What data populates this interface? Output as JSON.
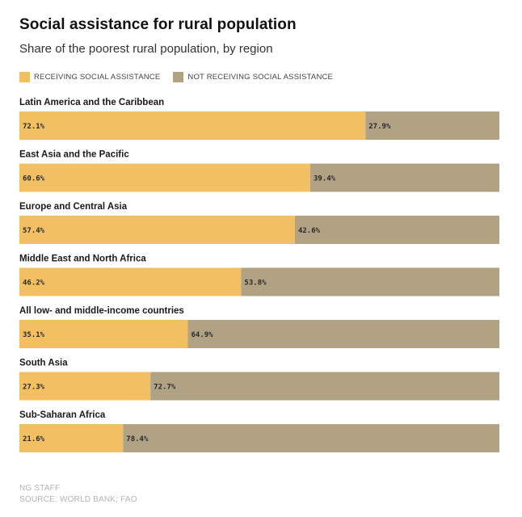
{
  "chart_data": {
    "type": "bar",
    "orientation": "horizontal",
    "stacked": true,
    "title": "Social assistance for rural population",
    "subtitle": "Share of the poorest rural population, by region",
    "xlim": [
      0,
      100
    ],
    "grid": false,
    "legend_position": "top-left",
    "categories": [
      "Latin America and the Caribbean",
      "East Asia and the Pacific",
      "Europe and Central Asia",
      "Middle East and North Africa",
      "All low- and middle-income countries",
      "South Asia",
      "Sub-Saharan Africa"
    ],
    "series": [
      {
        "name": "RECEIVING SOCIAL ASSISTANCE",
        "color": "#f2c063",
        "values": [
          72.1,
          60.6,
          57.4,
          46.2,
          35.1,
          27.3,
          21.6
        ],
        "labels": [
          "72.1%",
          "60.6%",
          "57.4%",
          "46.2%",
          "35.1%",
          "27.3%",
          "21.6%"
        ]
      },
      {
        "name": "NOT RECEIVING SOCIAL ASSISTANCE",
        "color": "#b0a283",
        "values": [
          27.9,
          39.4,
          42.6,
          53.8,
          64.9,
          72.7,
          78.4
        ],
        "labels": [
          "27.9%",
          "39.4%",
          "42.6%",
          "53.8%",
          "64.9%",
          "72.7%",
          "78.4%"
        ]
      }
    ]
  },
  "footer": {
    "credit": "NG STAFF",
    "source": "SOURCE: WORLD BANK; FAO"
  }
}
